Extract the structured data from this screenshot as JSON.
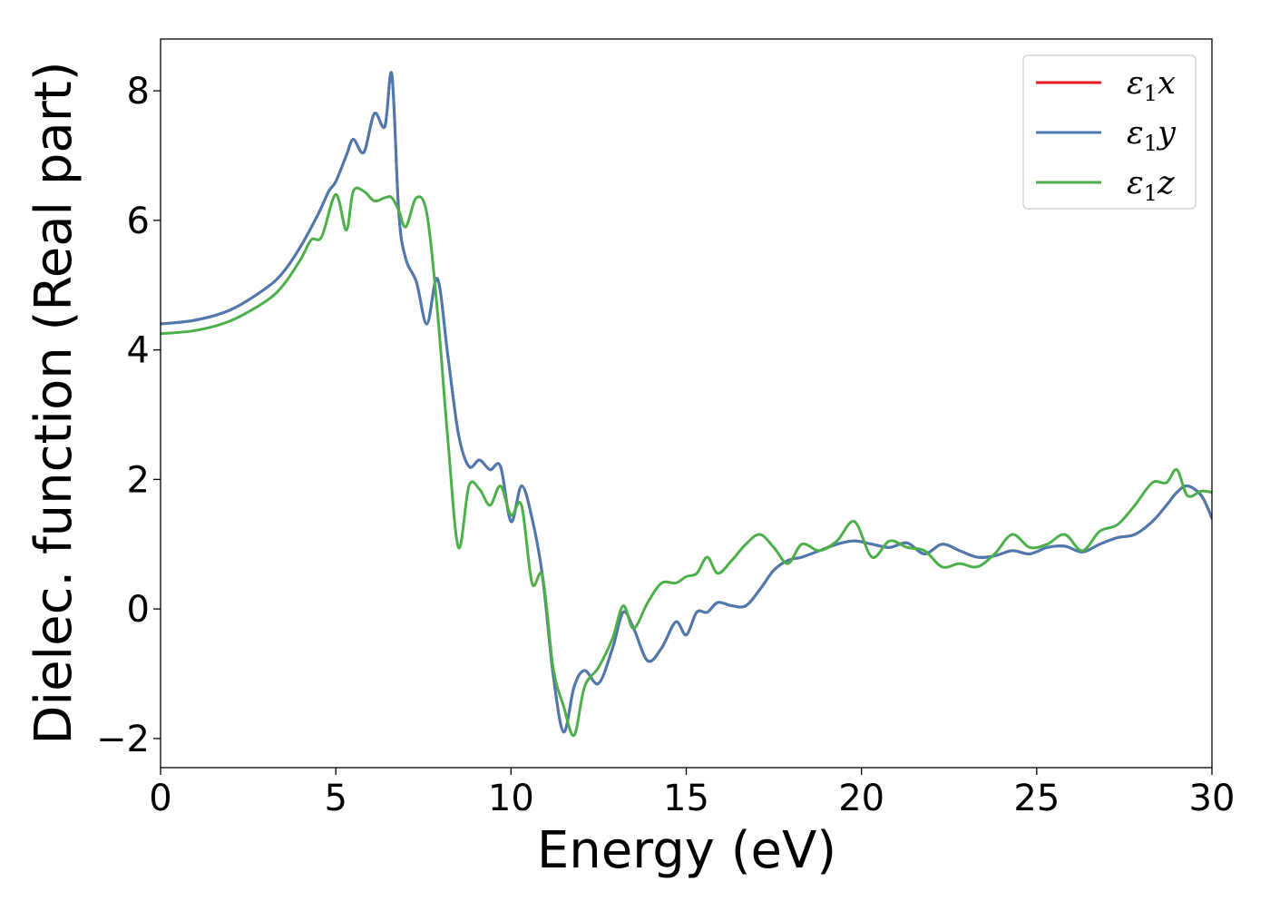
{
  "chart_data": {
    "type": "line",
    "title": "",
    "xlabel": "Energy (eV)",
    "ylabel": "Dielec. function (Real part)",
    "xlim": [
      0,
      30
    ],
    "ylim": [
      -2.45,
      8.8
    ],
    "xticks": [
      0,
      5,
      10,
      15,
      20,
      25,
      30
    ],
    "xtick_labels": [
      "0",
      "5",
      "10",
      "15",
      "20",
      "25",
      "30"
    ],
    "yticks": [
      -2,
      0,
      2,
      4,
      6,
      8
    ],
    "ytick_labels": [
      "−2",
      "0",
      "2",
      "4",
      "6",
      "8"
    ],
    "grid": false,
    "legend_position": "top-right",
    "series": [
      {
        "name": "ε₁x",
        "label_base": "ε",
        "label_sub": "1",
        "label_var": "x",
        "color": "#e41a1c",
        "x": [
          0,
          1,
          2,
          3,
          3.5,
          4,
          4.5,
          4.8,
          5,
          5.3,
          5.5,
          5.8,
          6.1,
          6.4,
          6.6,
          6.8,
          7.0,
          7.3,
          7.6,
          7.9,
          8.2,
          8.5,
          8.8,
          9.1,
          9.4,
          9.7,
          10.0,
          10.3,
          10.6,
          10.9,
          11.2,
          11.5,
          11.8,
          12.1,
          12.5,
          12.9,
          13.2,
          13.5,
          13.9,
          14.3,
          14.7,
          15.0,
          15.3,
          15.6,
          15.9,
          16.3,
          16.7,
          17.1,
          17.5,
          17.9,
          18.3,
          18.8,
          19.3,
          19.8,
          20.3,
          20.8,
          21.3,
          21.8,
          22.3,
          22.8,
          23.3,
          23.8,
          24.3,
          24.8,
          25.3,
          25.8,
          26.3,
          26.8,
          27.3,
          27.8,
          28.3,
          28.7,
          29.0,
          29.3,
          29.7,
          30.0
        ],
        "y": [
          4.4,
          4.46,
          4.62,
          4.95,
          5.2,
          5.6,
          6.1,
          6.45,
          6.6,
          7.0,
          7.25,
          7.05,
          7.65,
          7.45,
          8.25,
          6.1,
          5.4,
          5.05,
          4.4,
          5.1,
          3.9,
          2.7,
          2.2,
          2.3,
          2.15,
          2.2,
          1.35,
          1.9,
          1.4,
          0.5,
          -1.0,
          -1.9,
          -1.2,
          -0.95,
          -1.15,
          -0.6,
          -0.05,
          -0.3,
          -0.8,
          -0.6,
          -0.2,
          -0.4,
          -0.05,
          -0.05,
          0.1,
          0.05,
          0.05,
          0.3,
          0.6,
          0.75,
          0.8,
          0.9,
          1.0,
          1.05,
          1.0,
          0.95,
          1.02,
          0.85,
          1.0,
          0.9,
          0.8,
          0.82,
          0.9,
          0.85,
          0.95,
          0.97,
          0.88,
          1.0,
          1.1,
          1.15,
          1.35,
          1.6,
          1.8,
          1.9,
          1.75,
          1.4
        ]
      },
      {
        "name": "ε₁y",
        "label_base": "ε",
        "label_sub": "1",
        "label_var": "y",
        "color": "#4a7ab0",
        "x": [
          0,
          1,
          2,
          3,
          3.5,
          4,
          4.5,
          4.8,
          5,
          5.3,
          5.5,
          5.8,
          6.1,
          6.4,
          6.6,
          6.8,
          7.0,
          7.3,
          7.6,
          7.9,
          8.2,
          8.5,
          8.8,
          9.1,
          9.4,
          9.7,
          10.0,
          10.3,
          10.6,
          10.9,
          11.2,
          11.5,
          11.8,
          12.1,
          12.5,
          12.9,
          13.2,
          13.5,
          13.9,
          14.3,
          14.7,
          15.0,
          15.3,
          15.6,
          15.9,
          16.3,
          16.7,
          17.1,
          17.5,
          17.9,
          18.3,
          18.8,
          19.3,
          19.8,
          20.3,
          20.8,
          21.3,
          21.8,
          22.3,
          22.8,
          23.3,
          23.8,
          24.3,
          24.8,
          25.3,
          25.8,
          26.3,
          26.8,
          27.3,
          27.8,
          28.3,
          28.7,
          29.0,
          29.3,
          29.7,
          30.0
        ],
        "y": [
          4.4,
          4.46,
          4.62,
          4.95,
          5.2,
          5.6,
          6.1,
          6.45,
          6.6,
          7.0,
          7.25,
          7.05,
          7.65,
          7.45,
          8.25,
          6.1,
          5.4,
          5.05,
          4.4,
          5.1,
          3.9,
          2.7,
          2.2,
          2.3,
          2.15,
          2.2,
          1.35,
          1.9,
          1.4,
          0.5,
          -1.0,
          -1.9,
          -1.2,
          -0.95,
          -1.15,
          -0.6,
          -0.05,
          -0.3,
          -0.8,
          -0.6,
          -0.2,
          -0.4,
          -0.05,
          -0.05,
          0.1,
          0.05,
          0.05,
          0.3,
          0.6,
          0.75,
          0.8,
          0.9,
          1.0,
          1.05,
          1.0,
          0.95,
          1.02,
          0.85,
          1.0,
          0.9,
          0.8,
          0.82,
          0.9,
          0.85,
          0.95,
          0.97,
          0.88,
          1.0,
          1.1,
          1.15,
          1.35,
          1.6,
          1.8,
          1.9,
          1.75,
          1.4
        ]
      },
      {
        "name": "ε₁z",
        "label_base": "ε",
        "label_sub": "1",
        "label_var": "z",
        "color": "#4daf4a",
        "x": [
          0,
          1,
          2,
          3,
          3.5,
          4,
          4.3,
          4.6,
          5.0,
          5.3,
          5.5,
          5.8,
          6.1,
          6.4,
          6.6,
          6.8,
          7.0,
          7.3,
          7.6,
          7.9,
          8.2,
          8.5,
          8.8,
          9.1,
          9.4,
          9.7,
          10.0,
          10.3,
          10.6,
          10.9,
          11.2,
          11.5,
          11.8,
          12.1,
          12.5,
          12.9,
          13.2,
          13.5,
          13.9,
          14.3,
          14.7,
          15.0,
          15.3,
          15.6,
          15.9,
          16.3,
          16.7,
          17.1,
          17.5,
          17.9,
          18.3,
          18.8,
          19.3,
          19.8,
          20.3,
          20.8,
          21.3,
          21.8,
          22.3,
          22.8,
          23.3,
          23.8,
          24.3,
          24.8,
          25.3,
          25.8,
          26.3,
          26.8,
          27.3,
          27.8,
          28.3,
          28.7,
          29.0,
          29.3,
          29.7,
          30.0
        ],
        "y": [
          4.25,
          4.3,
          4.45,
          4.75,
          5.0,
          5.4,
          5.7,
          5.75,
          6.4,
          5.85,
          6.45,
          6.45,
          6.3,
          6.35,
          6.35,
          6.15,
          5.9,
          6.35,
          6.1,
          4.6,
          2.6,
          0.95,
          1.9,
          1.85,
          1.6,
          1.9,
          1.45,
          1.6,
          0.4,
          0.5,
          -0.9,
          -1.5,
          -1.95,
          -1.2,
          -0.9,
          -0.45,
          0.05,
          -0.3,
          0.1,
          0.4,
          0.4,
          0.5,
          0.55,
          0.8,
          0.55,
          0.75,
          1.0,
          1.15,
          0.95,
          0.7,
          1.0,
          0.9,
          1.05,
          1.35,
          0.8,
          1.05,
          0.95,
          0.9,
          0.65,
          0.7,
          0.65,
          0.85,
          1.15,
          0.95,
          1.0,
          1.15,
          0.9,
          1.2,
          1.3,
          1.6,
          1.95,
          1.95,
          2.15,
          1.75,
          1.82,
          1.8
        ]
      }
    ]
  }
}
